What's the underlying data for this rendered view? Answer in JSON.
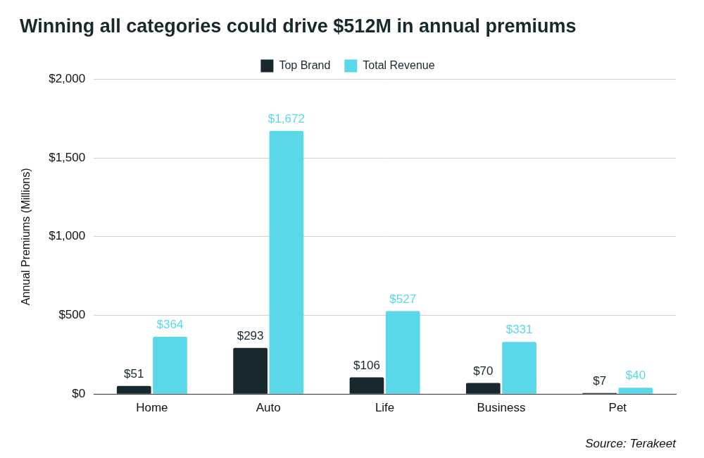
{
  "chart_data": {
    "type": "bar",
    "title": "Winning all categories could drive $512M in annual premiums",
    "y_label": "Annual Premiums (Millions)",
    "annotation": "Source: Terakeet",
    "categories": [
      "Home",
      "Auto",
      "Life",
      "Business",
      "Pet"
    ],
    "series": [
      {
        "name": "Top Brand",
        "color": "#17292e",
        "values": [
          51,
          293,
          106,
          70,
          7
        ],
        "value_labels": [
          "$51",
          "$293",
          "$106",
          "$70",
          "$7"
        ]
      },
      {
        "name": "Total Revenue",
        "color": "#5ad8ea",
        "values": [
          364,
          1672,
          527,
          331,
          40
        ],
        "value_labels": [
          "$364",
          "$1,672",
          "$527",
          "$331",
          "$40"
        ]
      }
    ],
    "ylim": [
      0,
      2000
    ],
    "yticks": [
      {
        "value": 0,
        "label": "$0"
      },
      {
        "value": 500,
        "label": "$500"
      },
      {
        "value": 1000,
        "label": "$1,000"
      },
      {
        "value": 1500,
        "label": "$1,500"
      },
      {
        "value": 2000,
        "label": "$2,000"
      }
    ],
    "grid": true,
    "legend": "top",
    "data_labels": true
  }
}
